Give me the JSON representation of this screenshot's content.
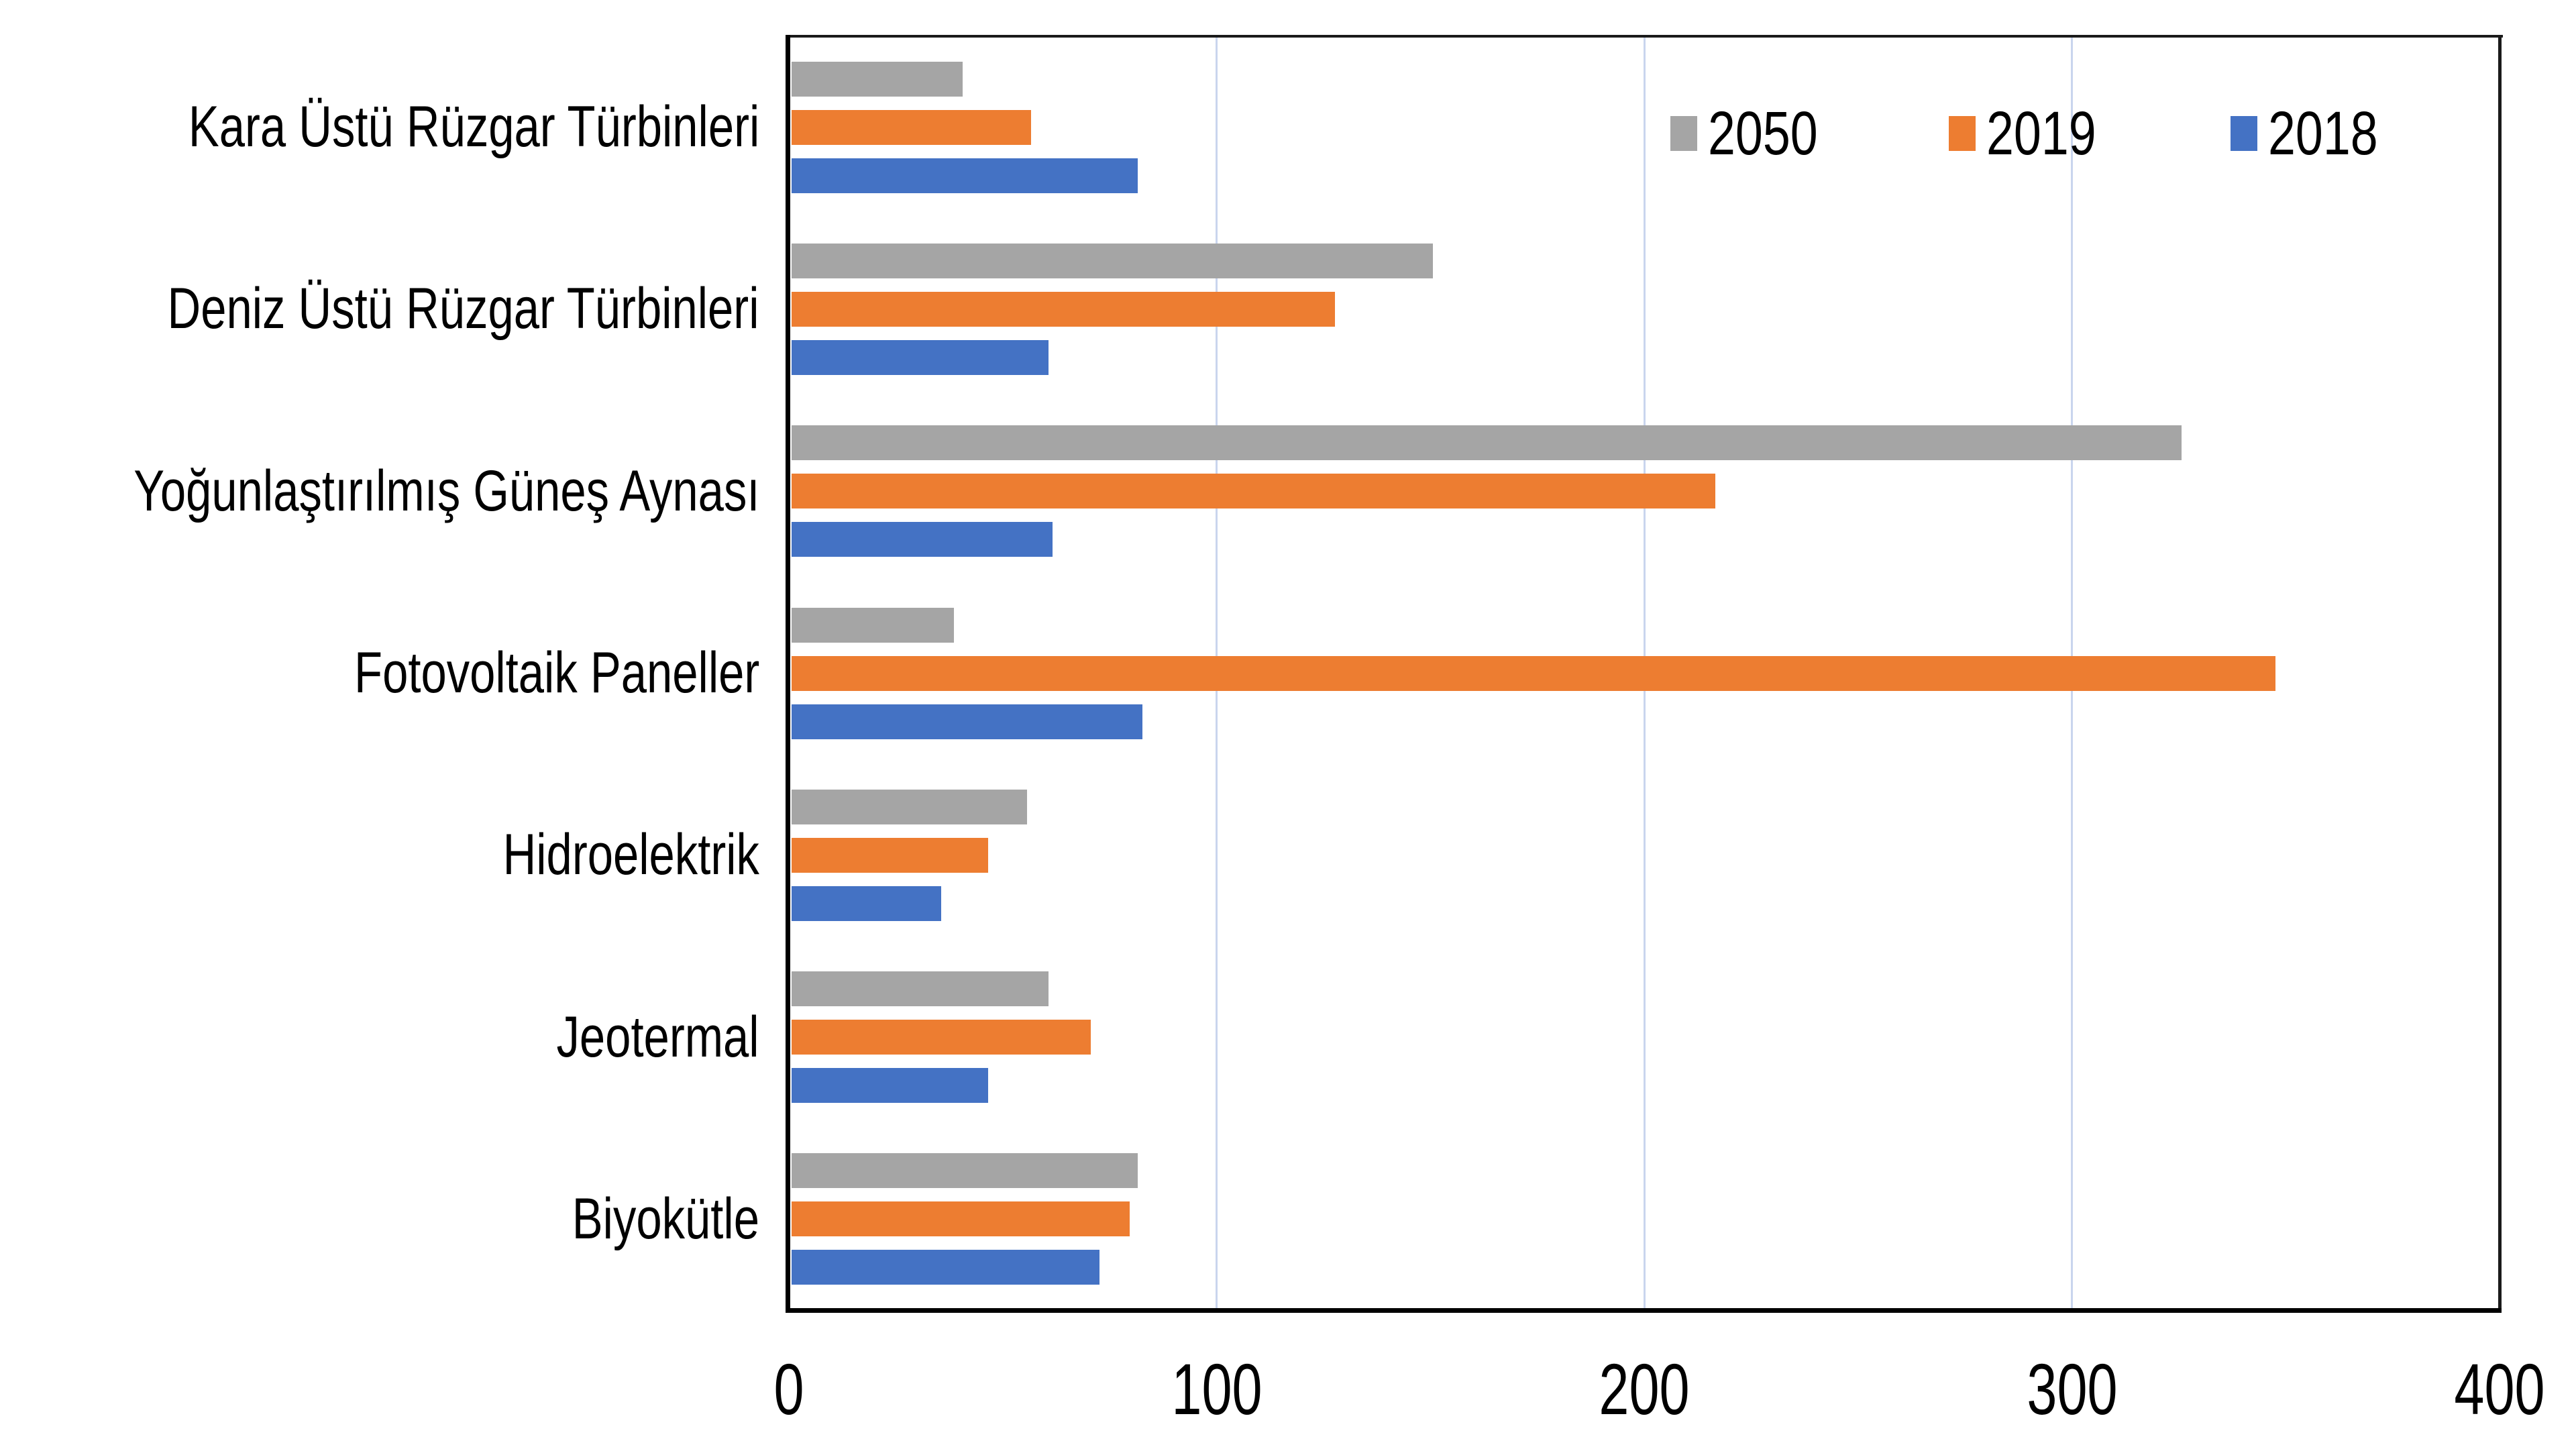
{
  "chart_data": {
    "type": "bar",
    "orientation": "horizontal",
    "title": "",
    "xlabel": "",
    "ylabel": "",
    "categories": [
      "Kara Üstü Rüzgar Türbinleri",
      "Deniz Üstü Rüzgar Türbinleri",
      "Yoğunlaştırılmış Güneş Aynası",
      "Fotovoltaik Paneller",
      "Hidroelektrik",
      "Jeotermal",
      "Biyokütle"
    ],
    "series": [
      {
        "name": "2050",
        "color": "#A5A5A5",
        "values": [
          40,
          150,
          325,
          38,
          55,
          60,
          81
        ]
      },
      {
        "name": "2019",
        "color": "#ED7D31",
        "values": [
          56,
          127,
          216,
          347,
          46,
          70,
          79
        ]
      },
      {
        "name": "2018",
        "color": "#4472C4",
        "values": [
          81,
          60,
          61,
          82,
          35,
          46,
          72
        ]
      }
    ],
    "xlim": [
      0,
      400
    ],
    "x_ticks": [
      "0",
      "100",
      "200",
      "300",
      "400"
    ],
    "grid": true,
    "legend_position": "top-right-inside",
    "colors": {
      "gridline": "#C9D5EE",
      "axis": "#000000",
      "plot_border": "#1a1a1a",
      "background": "#FFFFFF",
      "text": "#000000"
    }
  }
}
